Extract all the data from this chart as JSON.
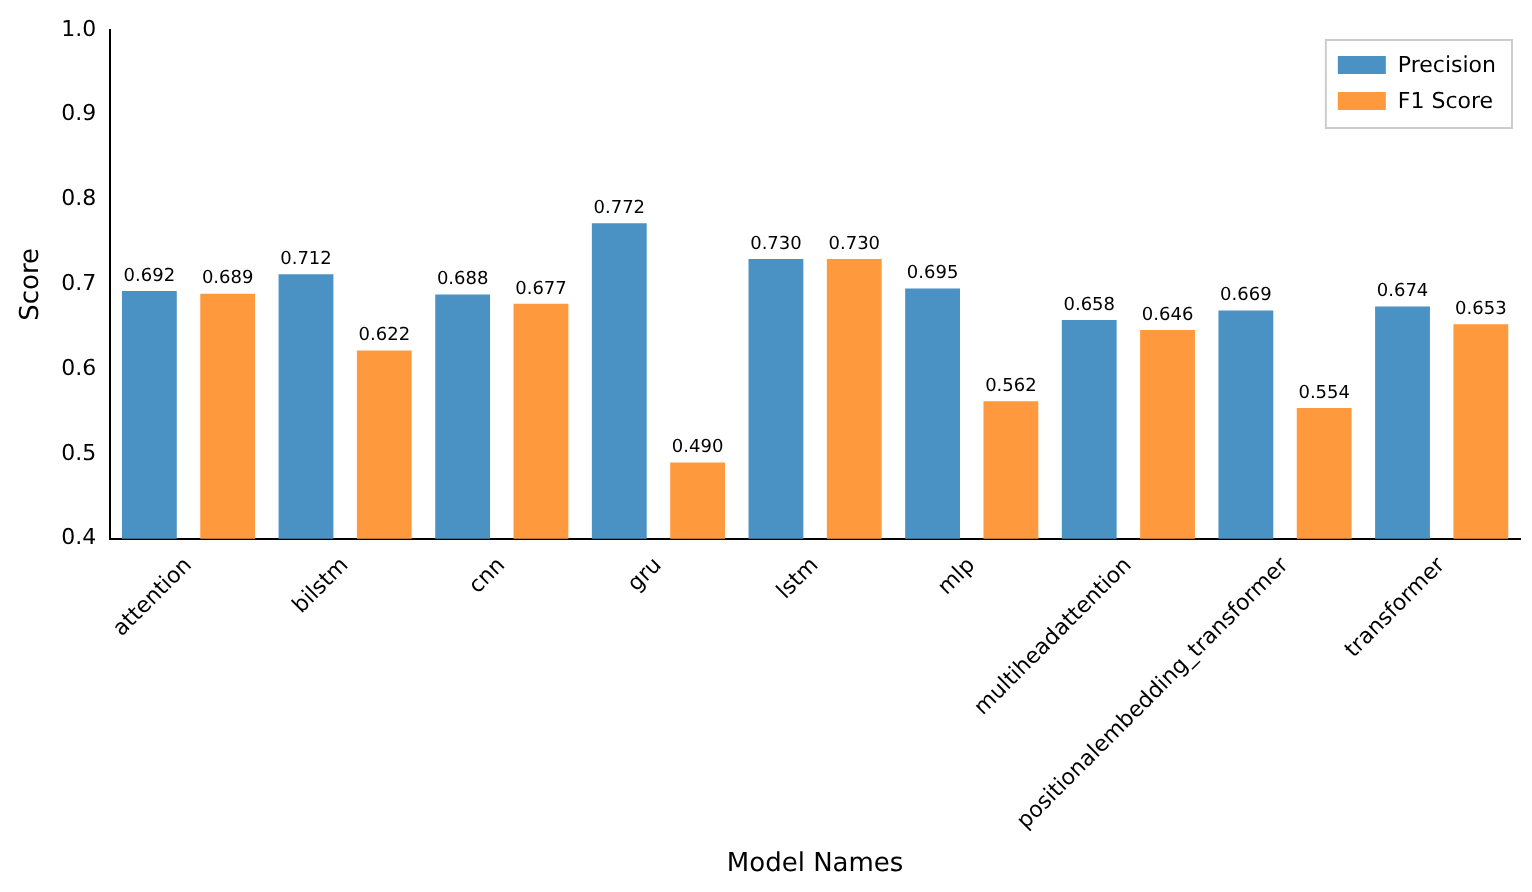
{
  "chart_data": {
    "type": "bar",
    "xlabel": "Model Names",
    "ylabel": "Score",
    "categories": [
      "attention",
      "bilstm",
      "cnn",
      "gru",
      "lstm",
      "mlp",
      "multiheadattention",
      "positionalembedding_transformer",
      "transformer"
    ],
    "series": [
      {
        "name": "Precision",
        "color": "#4a91c4",
        "values": [
          0.692,
          0.712,
          0.688,
          0.772,
          0.73,
          0.695,
          0.658,
          0.669,
          0.674
        ],
        "value_labels": [
          "0.692",
          "0.712",
          "0.688",
          "0.772",
          "0.730",
          "0.695",
          "0.658",
          "0.669",
          "0.674"
        ]
      },
      {
        "name": "F1 Score",
        "color": "#ff993d",
        "values": [
          0.689,
          0.622,
          0.677,
          0.49,
          0.73,
          0.562,
          0.646,
          0.554,
          0.653
        ],
        "value_labels": [
          "0.689",
          "0.622",
          "0.677",
          "0.490",
          "0.730",
          "0.562",
          "0.646",
          "0.554",
          "0.653"
        ]
      }
    ],
    "ylim": [
      0.4,
      1.0
    ],
    "yticks": [
      0.4,
      0.5,
      0.6,
      0.7,
      0.8,
      0.9,
      {
        "value": 1.0,
        "label": "1.0"
      }
    ],
    "grid": false,
    "legend": "top right"
  }
}
